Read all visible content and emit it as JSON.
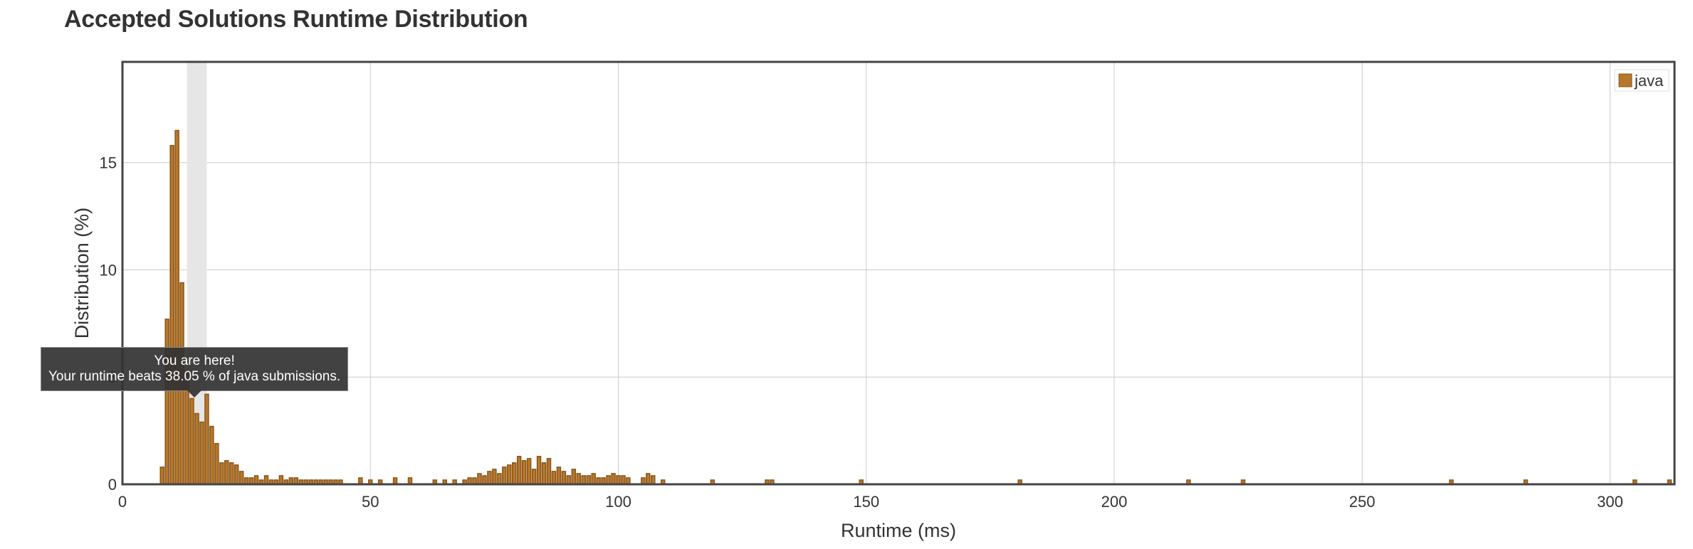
{
  "page": {
    "title": "Accepted Solutions Runtime Distribution"
  },
  "tooltip": {
    "line1": "You are here!",
    "line2": "Your runtime beats 38.05 % of java submissions."
  },
  "chart_data": {
    "type": "bar",
    "title": "Accepted Solutions Runtime Distribution",
    "xlabel": "Runtime (ms)",
    "ylabel": "Distribution (%)",
    "xlim": [
      0,
      313
    ],
    "ylim": [
      0,
      19.7
    ],
    "xticks": [
      0,
      50,
      100,
      150,
      200,
      250,
      300
    ],
    "yticks": [
      0,
      5,
      10,
      15
    ],
    "grid": true,
    "legend": {
      "position": "top-right",
      "entries": [
        "java"
      ]
    },
    "highlight": {
      "x": 15,
      "label": "You are here!"
    },
    "series": [
      {
        "name": "java",
        "color": "#b8782c",
        "x": [
          8,
          9,
          10,
          11,
          12,
          13,
          14,
          15,
          16,
          17,
          18,
          19,
          20,
          21,
          22,
          23,
          24,
          25,
          26,
          27,
          28,
          29,
          30,
          31,
          32,
          33,
          34,
          35,
          36,
          37,
          38,
          39,
          40,
          41,
          42,
          43,
          44,
          48,
          50,
          52,
          55,
          58,
          63,
          65,
          67,
          69,
          70,
          71,
          72,
          73,
          74,
          75,
          76,
          77,
          78,
          79,
          80,
          81,
          82,
          83,
          84,
          85,
          86,
          87,
          88,
          89,
          90,
          91,
          92,
          93,
          94,
          95,
          96,
          97,
          98,
          99,
          100,
          101,
          102,
          105,
          106,
          107,
          109,
          119,
          130,
          131,
          149,
          181,
          215,
          226,
          268,
          283,
          305,
          312
        ],
        "values": [
          0.8,
          7.7,
          15.8,
          16.5,
          9.4,
          5.3,
          4.0,
          3.3,
          2.9,
          4.2,
          2.7,
          1.9,
          1.0,
          1.1,
          1.0,
          0.9,
          0.6,
          0.3,
          0.3,
          0.4,
          0.2,
          0.4,
          0.2,
          0.2,
          0.4,
          0.2,
          0.3,
          0.3,
          0.2,
          0.2,
          0.2,
          0.2,
          0.2,
          0.2,
          0.2,
          0.2,
          0.2,
          0.3,
          0.2,
          0.2,
          0.3,
          0.3,
          0.2,
          0.2,
          0.2,
          0.2,
          0.3,
          0.3,
          0.5,
          0.4,
          0.6,
          0.7,
          0.5,
          0.8,
          0.9,
          1.0,
          1.3,
          1.1,
          1.2,
          0.7,
          1.3,
          1.0,
          1.2,
          0.6,
          0.8,
          0.6,
          0.4,
          0.7,
          0.5,
          0.4,
          0.4,
          0.5,
          0.3,
          0.3,
          0.4,
          0.5,
          0.4,
          0.4,
          0.3,
          0.3,
          0.5,
          0.4,
          0.2,
          0.2,
          0.2,
          0.2,
          0.2,
          0.2,
          0.2,
          0.2,
          0.2,
          0.2,
          0.2,
          0.2
        ]
      }
    ]
  }
}
